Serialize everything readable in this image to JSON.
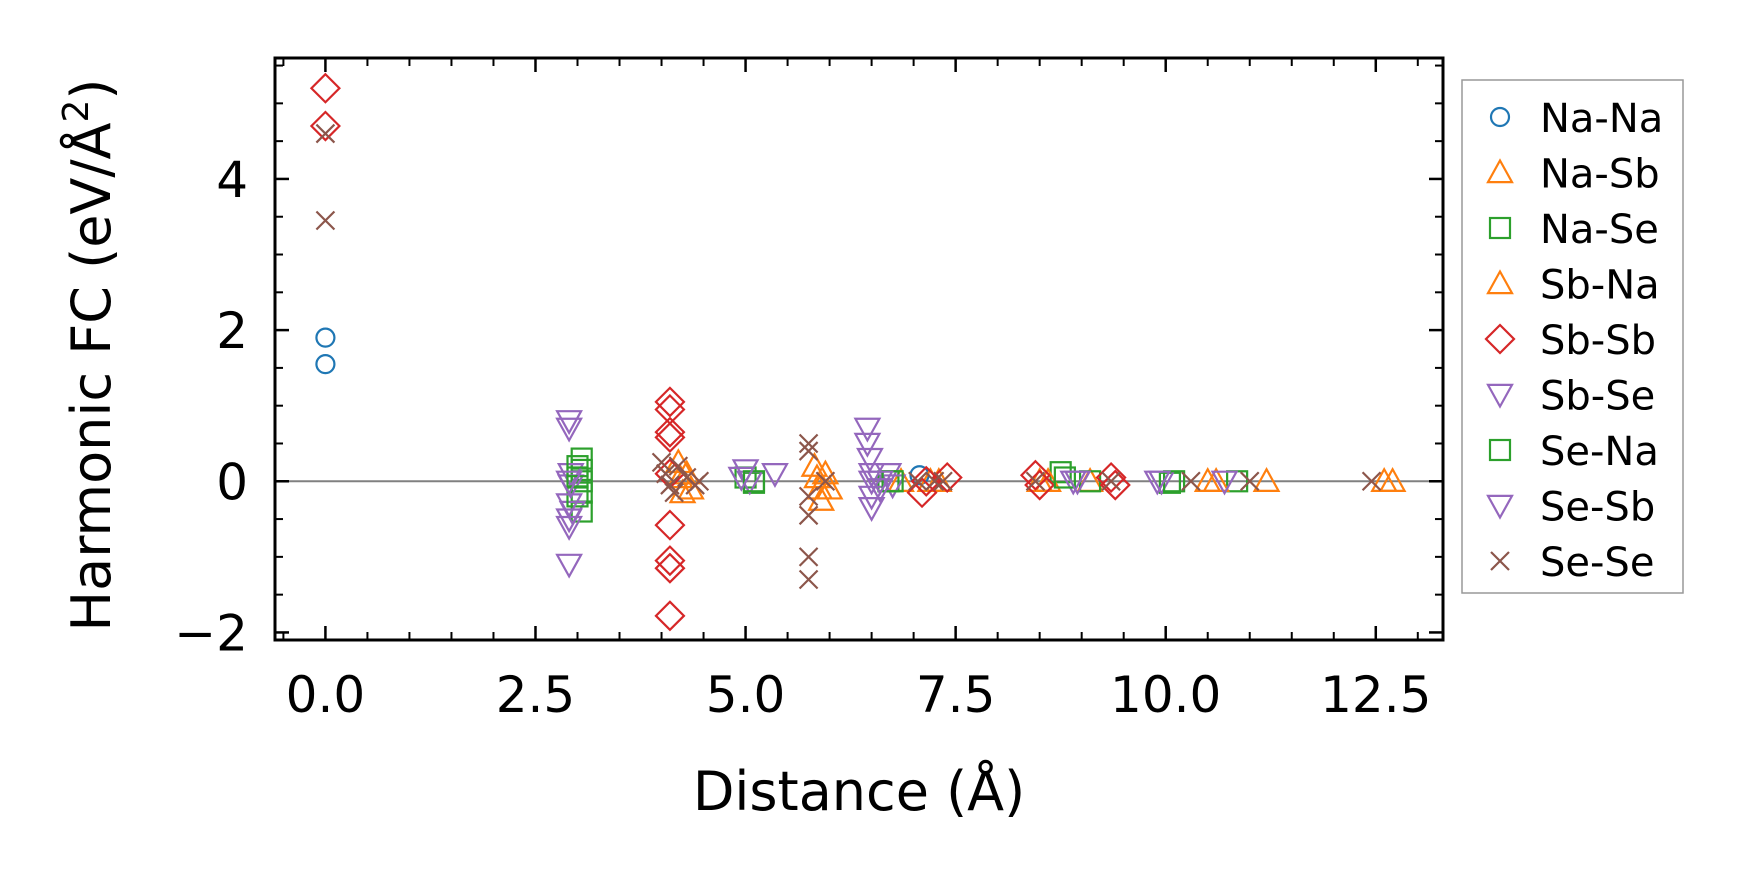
{
  "chart_data": {
    "type": "scatter",
    "xlabel": "Distance (Å)",
    "ylabel_main": "Harmonic FC (eV/Å",
    "ylabel_sup": "2",
    "ylabel_close": ")",
    "xlim": [
      -0.6,
      13.3
    ],
    "ylim": [
      -2.1,
      5.6
    ],
    "xticks": [
      {
        "value": 0,
        "label": "0.0"
      },
      {
        "value": 2.5,
        "label": "2.5"
      },
      {
        "value": 5,
        "label": "5.0"
      },
      {
        "value": 7.5,
        "label": "7.5"
      },
      {
        "value": 10,
        "label": "10.0"
      },
      {
        "value": 12.5,
        "label": "12.5"
      }
    ],
    "yticks": [
      {
        "value": -2,
        "label": "−2"
      },
      {
        "value": 0,
        "label": "0"
      },
      {
        "value": 2,
        "label": "2"
      },
      {
        "value": 4,
        "label": "4"
      }
    ],
    "zero_line": 0,
    "legend_position": "right",
    "series": [
      {
        "name": "Na-Na",
        "marker": "circle",
        "color": "#1f77b4",
        "x": [
          0,
          0,
          7.07
        ],
        "y": [
          1.9,
          1.55,
          0.08
        ]
      },
      {
        "name": "Na-Sb",
        "marker": "triangle-up",
        "color": "#ff7f0e",
        "x": [
          4.2,
          4.22,
          4.25,
          5.82,
          5.85,
          5.88,
          5.9,
          6.85,
          7.3,
          8.5,
          9.1,
          10.5,
          11.2,
          12.6
        ],
        "y": [
          0.25,
          0.05,
          -0.15,
          0.2,
          0.05,
          -0.1,
          -0.25,
          0.0,
          0.0,
          0.0,
          0.0,
          0.0,
          0.0,
          0.0
        ]
      },
      {
        "name": "Na-Se",
        "marker": "square",
        "color": "#2ca02c",
        "x": [
          3.05,
          3.05,
          3.05,
          3.05,
          3.05,
          5.0,
          5.1,
          6.7,
          8.75,
          9.1,
          10.05,
          10.85
        ],
        "y": [
          0.3,
          0.15,
          0.0,
          -0.15,
          -0.4,
          0.05,
          -0.02,
          0.0,
          0.12,
          0.0,
          -0.02,
          0.0
        ]
      },
      {
        "name": "Sb-Na",
        "marker": "triangle-up",
        "color": "#ff7f0e",
        "x": [
          4.3,
          4.35,
          5.95,
          6.0,
          7.2,
          8.6,
          10.6,
          12.7
        ],
        "y": [
          0.1,
          -0.1,
          0.1,
          -0.1,
          0.0,
          0.0,
          0.0,
          0.0
        ]
      },
      {
        "name": "Sb-Sb",
        "marker": "diamond",
        "color": "#d62728",
        "x": [
          0,
          0,
          4.1,
          4.1,
          4.1,
          4.1,
          4.1,
          4.1,
          4.1,
          4.1,
          4.1,
          7.1,
          7.15,
          7.4,
          8.45,
          8.5,
          9.35,
          9.4
        ],
        "y": [
          5.2,
          4.7,
          1.05,
          0.95,
          0.65,
          0.58,
          -0.58,
          -1.05,
          -1.15,
          -1.78,
          0.1,
          -0.15,
          0.0,
          0.05,
          0.08,
          -0.05,
          0.05,
          -0.05
        ]
      },
      {
        "name": "Sb-Se",
        "marker": "triangle-down",
        "color": "#9467bd",
        "x": [
          2.9,
          2.9,
          2.92,
          2.92,
          2.94,
          2.9,
          2.9,
          5.0,
          5.05,
          5.35,
          6.45,
          6.45,
          6.48,
          6.5,
          6.5,
          6.5,
          6.7,
          6.75,
          8.9,
          9.95
        ],
        "y": [
          0.8,
          0.7,
          0.1,
          -0.05,
          -0.4,
          -0.6,
          -1.1,
          0.15,
          0.0,
          0.1,
          0.7,
          0.5,
          0.3,
          0.0,
          -0.2,
          -0.35,
          0.1,
          -0.05,
          0.0,
          0.0
        ]
      },
      {
        "name": "Se-Na",
        "marker": "square",
        "color": "#2ca02c",
        "x": [
          3.0,
          3.0,
          3.0,
          5.1,
          6.75,
          8.8,
          10.1
        ],
        "y": [
          0.2,
          0.05,
          -0.2,
          0.0,
          0.0,
          0.05,
          0.0
        ]
      },
      {
        "name": "Se-Sb",
        "marker": "triangle-down",
        "color": "#9467bd",
        "x": [
          2.9,
          2.9,
          2.9,
          4.95,
          6.5,
          6.6,
          6.6,
          8.95,
          9.9,
          10.7
        ],
        "y": [
          0.0,
          -0.3,
          -0.5,
          0.05,
          0.1,
          -0.1,
          0.0,
          0.0,
          0.0,
          0.0
        ]
      },
      {
        "name": "Se-Se",
        "marker": "x",
        "color": "#8c564b",
        "x": [
          0,
          0,
          4.0,
          4.05,
          4.1,
          4.15,
          4.2,
          4.3,
          4.4,
          4.45,
          5.75,
          5.75,
          5.75,
          5.75,
          5.75,
          5.75,
          5.95,
          7.05,
          7.25,
          7.35,
          8.45,
          9.35,
          10.3,
          11.0,
          12.45
        ],
        "y": [
          4.6,
          3.45,
          0.25,
          0.1,
          -0.05,
          -0.15,
          0.2,
          0.05,
          -0.05,
          0.0,
          0.5,
          0.4,
          -0.2,
          -0.45,
          -1.0,
          -1.3,
          0.0,
          0.0,
          0.0,
          0.0,
          0.0,
          0.0,
          0.0,
          0.0,
          0.0
        ]
      }
    ]
  }
}
